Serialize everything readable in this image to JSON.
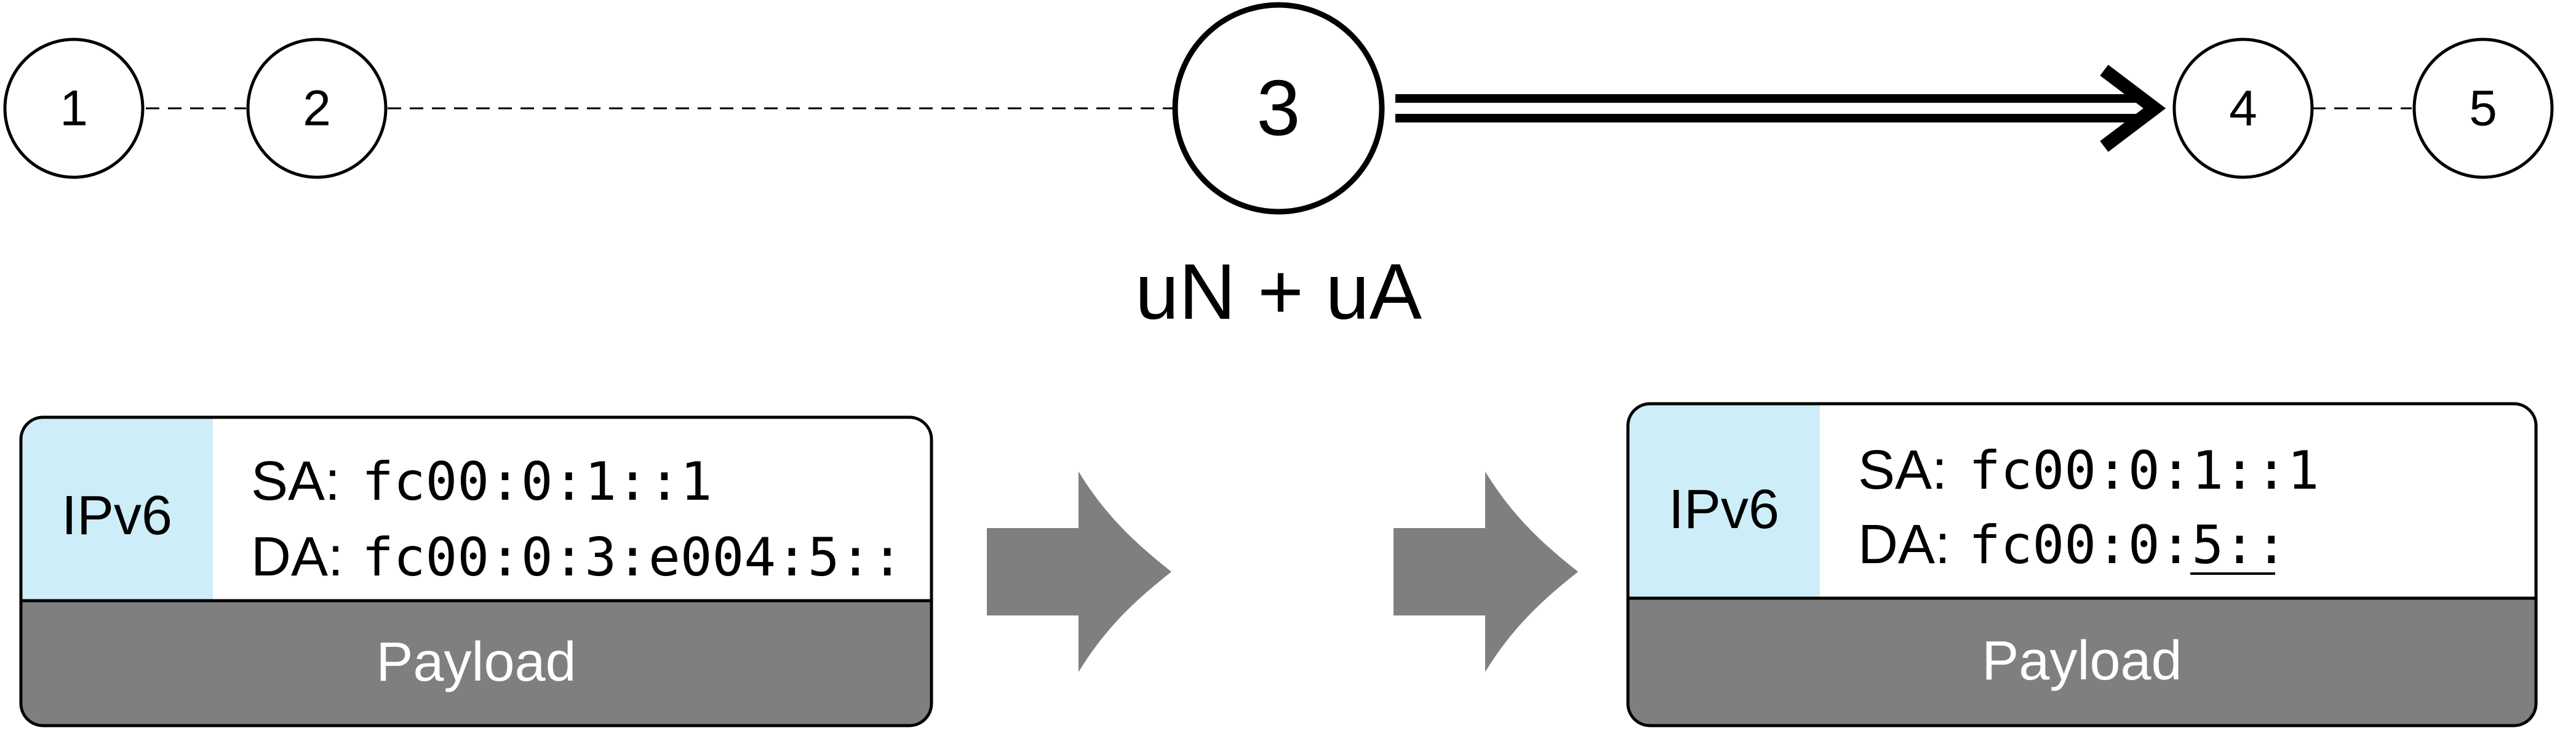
{
  "nodes": [
    {
      "label": "1"
    },
    {
      "label": "2"
    },
    {
      "label": "3"
    },
    {
      "label": "4"
    },
    {
      "label": "5"
    }
  ],
  "function_label": "uN + uA",
  "packet_before": {
    "header_label": "IPv6",
    "sa_label": "SA:",
    "sa_value": "fc00:0:1::1",
    "da_label": "DA:",
    "da_value": "fc00:0:3:e004:5::",
    "payload_label": "Payload"
  },
  "packet_after": {
    "header_label": "IPv6",
    "sa_label": "SA:",
    "sa_value": "fc00:0:1::1",
    "da_label": "DA:",
    "da_value_prefix": "fc00:0:",
    "da_value_highlight": "5::",
    "payload_label": "Payload"
  },
  "colors": {
    "header_fill": "#cdeef8",
    "payload_fill": "#7f7f7f",
    "arrow_fill": "#7f7f7f",
    "stroke": "#000000"
  }
}
